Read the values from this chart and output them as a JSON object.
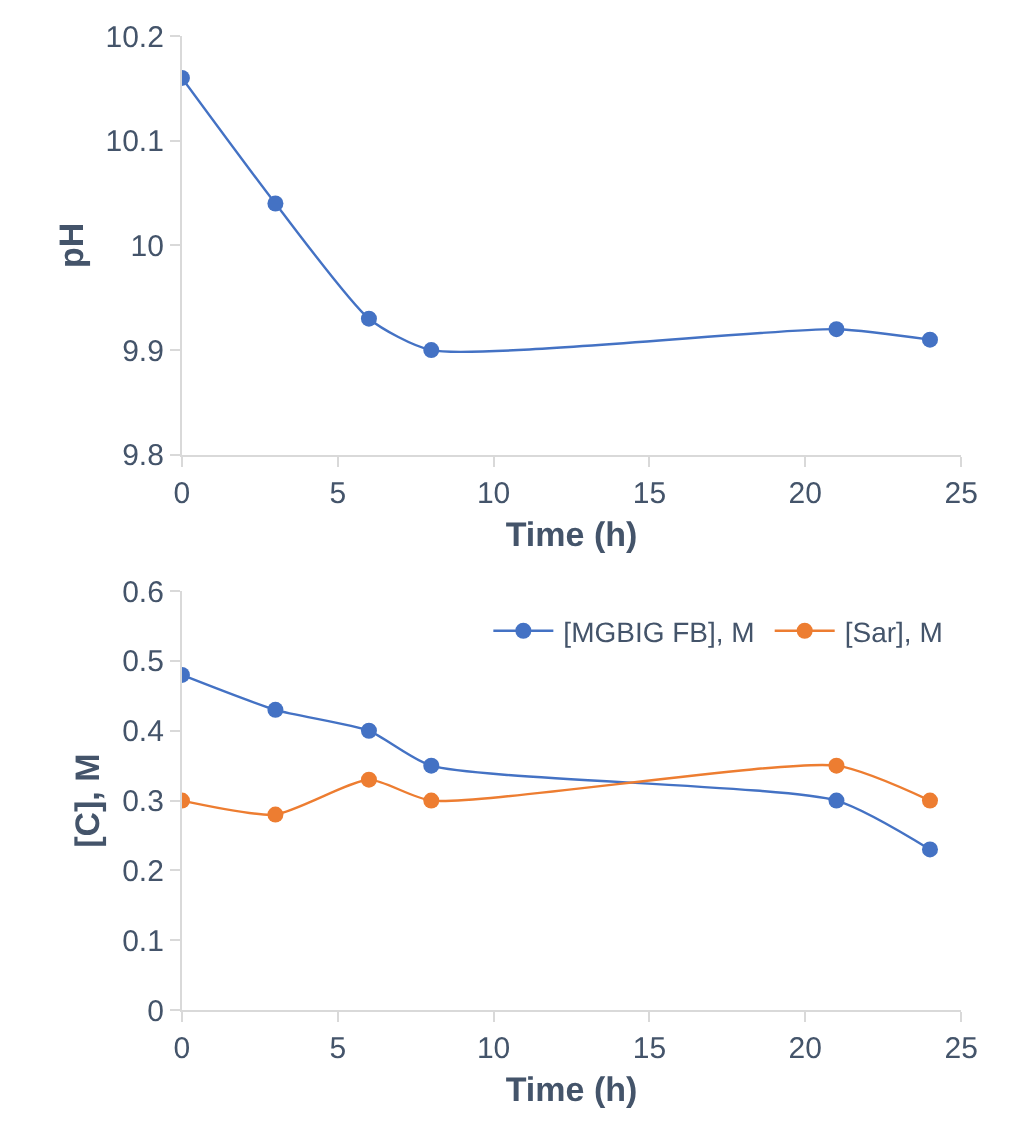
{
  "chart_data": [
    {
      "type": "line",
      "xlabel": "Time (h)",
      "ylabel": "pH",
      "x": [
        0,
        3,
        6,
        8,
        21,
        24
      ],
      "series": [
        {
          "color": "#4472c4",
          "values": [
            10.16,
            10.04,
            9.93,
            9.9,
            9.92,
            9.91
          ]
        }
      ],
      "xlim": [
        0,
        25
      ],
      "xticks": [
        0,
        5,
        10,
        15,
        20,
        25
      ],
      "ylim": [
        9.8,
        10.2
      ],
      "yticks": [
        9.8,
        9.9,
        10,
        10.1,
        10.2
      ],
      "legend": false,
      "marker": "circle",
      "line_style": "solid"
    },
    {
      "type": "line",
      "xlabel": "Time (h)",
      "ylabel": "[C], M",
      "x": [
        0,
        3,
        6,
        8,
        21,
        24
      ],
      "series": [
        {
          "name": "[MGBIG FB], M",
          "color": "#4472c4",
          "values": [
            0.48,
            0.43,
            0.4,
            0.35,
            0.3,
            0.23
          ]
        },
        {
          "name": "[Sar], M",
          "color": "#ed7d31",
          "values": [
            0.3,
            0.28,
            0.33,
            0.3,
            0.35,
            0.3
          ]
        }
      ],
      "xlim": [
        0,
        25
      ],
      "xticks": [
        0,
        5,
        10,
        15,
        20,
        25
      ],
      "ylim": [
        0,
        0.6
      ],
      "yticks": [
        0,
        0.1,
        0.2,
        0.3,
        0.4,
        0.5,
        0.6
      ],
      "legend": "top right",
      "marker": "circle",
      "line_style": "solid"
    }
  ]
}
